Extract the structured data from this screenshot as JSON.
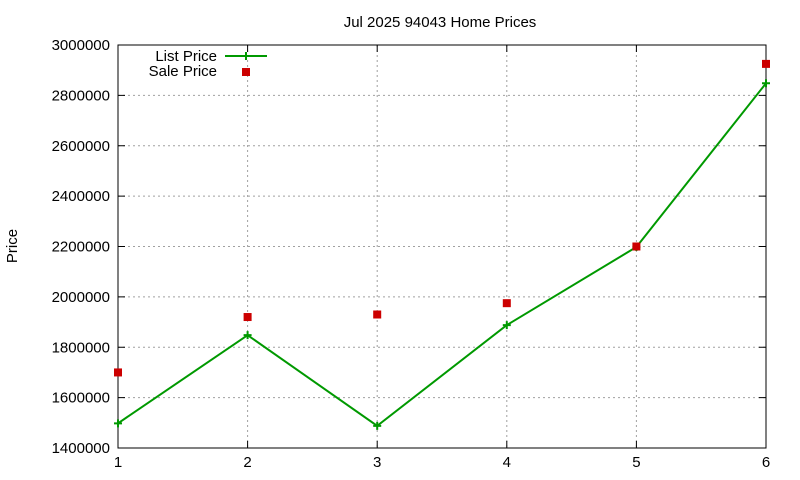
{
  "chart_data": {
    "type": "line",
    "title": "Jul 2025 94043 Home Prices",
    "xlabel": "",
    "ylabel": "Price",
    "x": [
      1,
      2,
      3,
      4,
      5,
      6
    ],
    "xlim": [
      1,
      6
    ],
    "ylim": [
      1400000,
      3000000
    ],
    "x_ticks": [
      "1",
      "2",
      "3",
      "4",
      "5",
      "6"
    ],
    "y_ticks": [
      "1400000",
      "1600000",
      "1800000",
      "2000000",
      "2200000",
      "2400000",
      "2600000",
      "2800000",
      "3000000"
    ],
    "grid": true,
    "legend_position": "top-left",
    "series": [
      {
        "name": "List Price",
        "style": "line-with-plus-markers",
        "color": "#009900",
        "values": [
          1498000,
          1848000,
          1488000,
          1888000,
          2198000,
          2848000
        ]
      },
      {
        "name": "Sale Price",
        "style": "square-markers",
        "color": "#cc0000",
        "values": [
          1700000,
          1920000,
          1930000,
          1975000,
          2200000,
          2925000
        ]
      }
    ]
  }
}
